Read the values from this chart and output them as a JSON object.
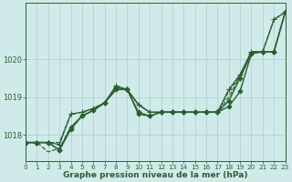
{
  "background_color": "#d0eaea",
  "grid_color": "#aacccc",
  "line_color": "#2a6030",
  "xlabel": "Graphe pression niveau de la mer (hPa)",
  "ylim": [
    1017.3,
    1021.5
  ],
  "xlim": [
    0,
    23
  ],
  "yticks": [
    1018,
    1019,
    1020
  ],
  "xticks": [
    0,
    1,
    2,
    3,
    4,
    5,
    6,
    7,
    8,
    9,
    10,
    11,
    12,
    13,
    14,
    15,
    16,
    17,
    18,
    19,
    20,
    21,
    22,
    23
  ],
  "series": [
    {
      "y": [
        1017.8,
        1017.8,
        1017.8,
        1017.6,
        1018.15,
        1018.5,
        1018.65,
        1018.85,
        1019.2,
        1019.2,
        1018.55,
        1018.5,
        1018.6,
        1018.6,
        1018.6,
        1018.6,
        1018.6,
        1018.6,
        1018.75,
        1019.15,
        1020.15,
        1020.2,
        1020.2,
        1021.25
      ],
      "ls": "-",
      "lw": 1.0,
      "marker": "D",
      "ms": 2.5,
      "mfc": "#2a6030"
    },
    {
      "y": [
        1017.8,
        1017.8,
        1017.8,
        1017.6,
        1018.2,
        1018.5,
        1018.65,
        1018.85,
        1019.25,
        1019.2,
        1018.6,
        1018.5,
        1018.6,
        1018.6,
        1018.6,
        1018.6,
        1018.6,
        1018.6,
        1018.9,
        1019.5,
        1020.15,
        1020.2,
        1020.2,
        1021.25
      ],
      "ls": "-",
      "lw": 1.0,
      "marker": "D",
      "ms": 2.5,
      "mfc": "#2a6030"
    },
    {
      "y": [
        1017.8,
        1017.8,
        1017.8,
        1017.75,
        1018.55,
        1018.6,
        1018.7,
        1018.85,
        1019.3,
        1019.2,
        1018.8,
        1018.6,
        1018.6,
        1018.6,
        1018.6,
        1018.6,
        1018.6,
        1018.6,
        1019.2,
        1019.6,
        1020.2,
        1020.2,
        1021.05,
        1021.25
      ],
      "ls": "-",
      "lw": 0.9,
      "marker": "+",
      "ms": 4.0,
      "mfc": "none"
    },
    {
      "y": [
        1017.8,
        1017.8,
        1017.55,
        1017.65,
        1018.2,
        1018.5,
        1018.65,
        1018.85,
        1019.2,
        1019.2,
        1018.8,
        1018.6,
        1018.6,
        1018.6,
        1018.6,
        1018.6,
        1018.6,
        1018.6,
        1019.0,
        1019.55,
        1020.2,
        1020.2,
        1021.05,
        1021.25
      ],
      "ls": "--",
      "lw": 0.9,
      "marker": null,
      "ms": 0,
      "mfc": "none"
    },
    {
      "y": [
        1017.8,
        1017.8,
        1017.8,
        1017.8,
        1018.55,
        1018.6,
        1018.7,
        1018.85,
        1019.2,
        1019.2,
        1018.8,
        1018.6,
        1018.6,
        1018.6,
        1018.6,
        1018.6,
        1018.6,
        1018.6,
        1019.15,
        1019.55,
        1020.2,
        1020.2,
        1020.2,
        1021.25
      ],
      "ls": "--",
      "lw": 0.9,
      "marker": null,
      "ms": 0,
      "mfc": "none"
    }
  ]
}
